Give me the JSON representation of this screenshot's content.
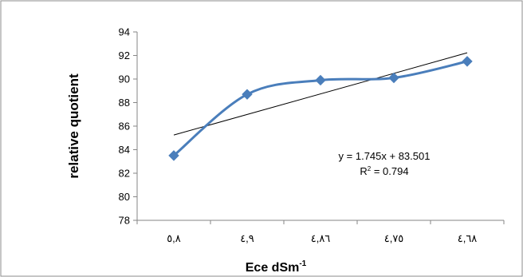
{
  "chart_data": {
    "type": "line",
    "title": "",
    "xlabel": "Ece dSm",
    "xlabel_superscript": "-1",
    "ylabel": "relative quotient",
    "categories": [
      "٥,٨",
      "٤,٩",
      "٤,٨٦",
      "٤,٧٥",
      "٤,٦٨"
    ],
    "series": [
      {
        "values": [
          83.5,
          88.7,
          89.9,
          90.1,
          91.5
        ],
        "color": "#4a7ebb",
        "marker": "diamond",
        "smooth": true
      }
    ],
    "trendline": {
      "type": "linear",
      "slope": 1.745,
      "intercept": 83.501,
      "color": "#000000",
      "equation_label": "y = 1.745x + 83.501",
      "r2_label_prefix": "R",
      "r2_label_superscript": "2",
      "r2_label_suffix": " = 0.794"
    },
    "ylim": [
      78,
      94
    ],
    "yticks": [
      "78",
      "80",
      "82",
      "84",
      "86",
      "88",
      "90",
      "92",
      "94"
    ],
    "grid": false,
    "legend": "none"
  }
}
